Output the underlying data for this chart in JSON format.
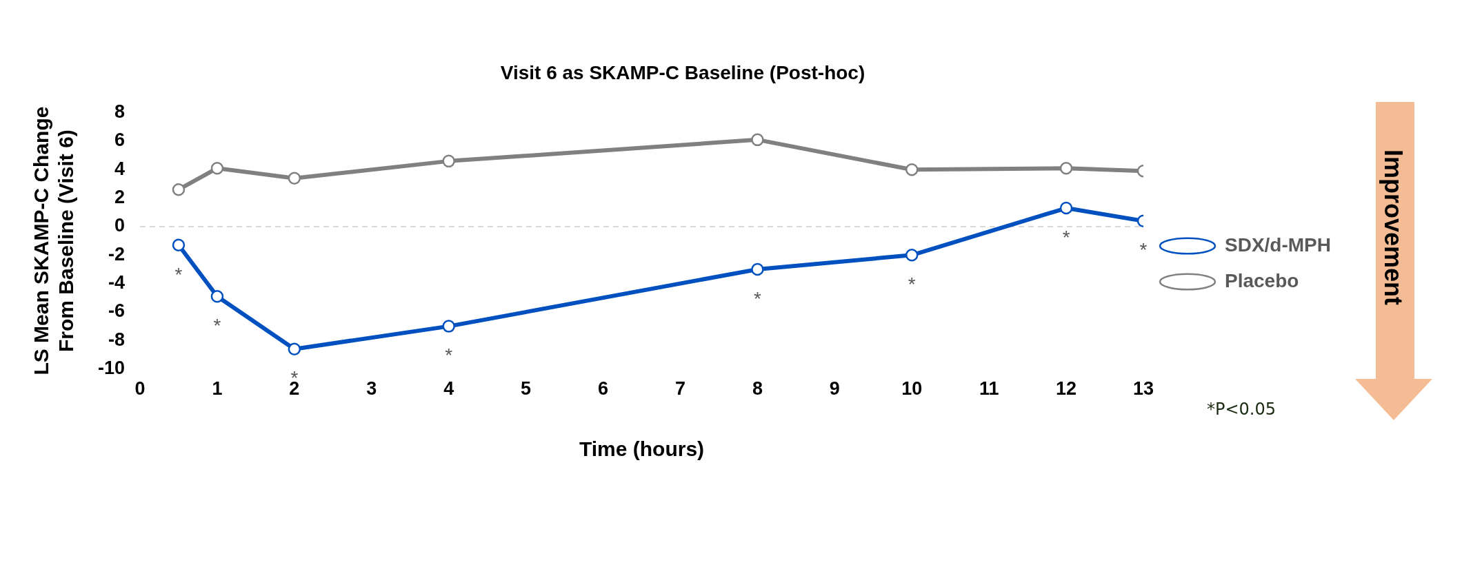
{
  "chart_data": {
    "type": "line",
    "title": "Visit 6 as SKAMP-C Baseline (Post-hoc)",
    "xlabel": "Time (hours)",
    "ylabel": "LS Mean SKAMP-C Change From Baseline (Visit 6)",
    "x": [
      0.5,
      1,
      2,
      4,
      8,
      10,
      12,
      13
    ],
    "series": [
      {
        "name": "SDX/d-MPH",
        "color": "#0050c0",
        "values": [
          -1.3,
          -4.9,
          -8.6,
          -7.0,
          -3.0,
          -2.0,
          1.3,
          0.4
        ]
      },
      {
        "name": "Placebo",
        "color": "#808080",
        "values": [
          2.6,
          4.1,
          3.4,
          4.6,
          6.1,
          4.0,
          4.1,
          3.9
        ]
      }
    ],
    "xlim": [
      0,
      13
    ],
    "xticks": [
      0,
      1,
      2,
      3,
      4,
      5,
      6,
      7,
      8,
      9,
      10,
      11,
      12,
      13
    ],
    "ylim": [
      -10,
      8
    ],
    "yticks": [
      -10,
      -8,
      -6,
      -4,
      -2,
      0,
      2,
      4,
      6,
      8
    ],
    "ref_lines": [
      {
        "axis": "y",
        "value": 0,
        "color": "#d9d9d9",
        "line_style": "dashed"
      }
    ],
    "annotations": [
      "Improvement",
      "*P<0.05",
      {
        "text": "*",
        "x": 0.5,
        "y": -1.3
      },
      {
        "text": "*",
        "x": 1,
        "y": -4.9
      },
      {
        "text": "*",
        "x": 2,
        "y": -8.6
      },
      {
        "text": "*",
        "x": 4,
        "y": -7.0
      },
      {
        "text": "*",
        "x": 8,
        "y": -3.0
      },
      {
        "text": "*",
        "x": 10,
        "y": -2.0
      },
      {
        "text": "*",
        "x": 12,
        "y": 1.3
      },
      {
        "text": "*",
        "x": 13,
        "y": 0.4
      }
    ],
    "legend": "right",
    "marker": "circle",
    "line_style": "solid",
    "grid": false
  }
}
